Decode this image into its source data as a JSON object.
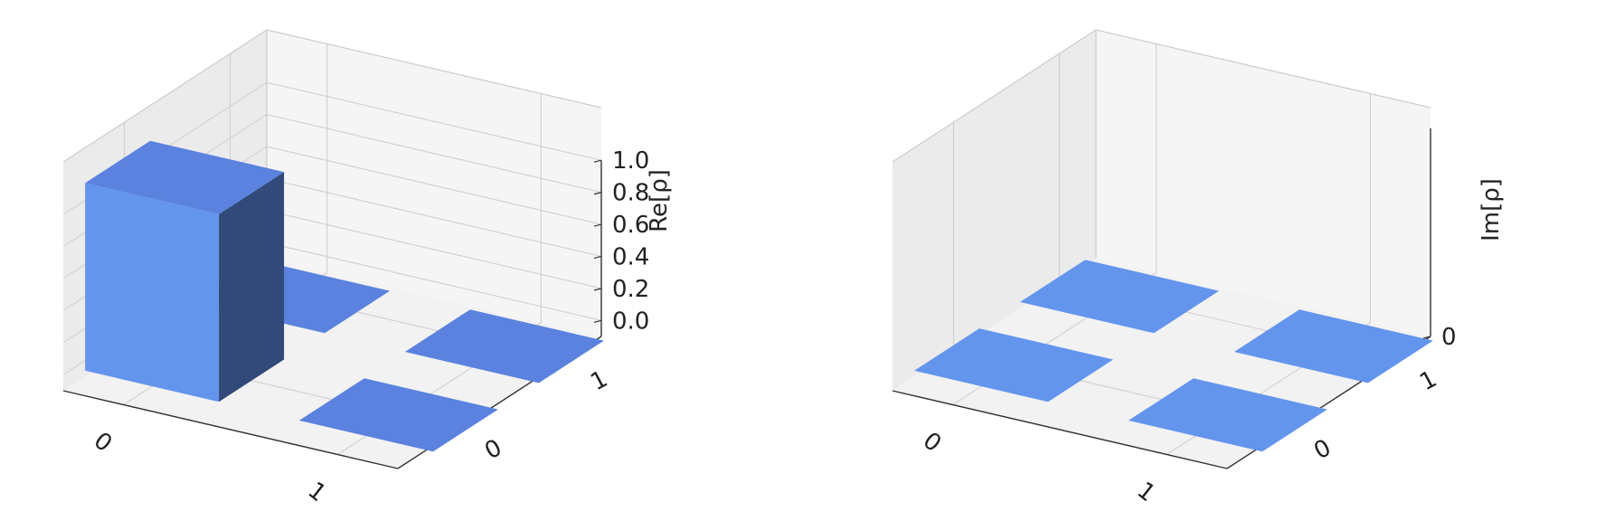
{
  "colors": {
    "bar_front": "#6495ED",
    "bar_side": "#324A79",
    "bar_top": "#5A82DE",
    "flat_bar_re": "#5A82DE",
    "flat_bar_im": "#6495ED",
    "pane_left": "#ebebeb",
    "pane_right": "#f5f5f5",
    "floor": "#f2f2f2",
    "grid": "#d2d2d2",
    "axis_line": "#333333"
  },
  "chart_data": [
    {
      "type": "bar3d",
      "zlabel": "Re[ρ]",
      "x_tick_labels": [
        "0",
        "1"
      ],
      "y_tick_labels": [
        "0",
        "1"
      ],
      "z_tick_labels": [
        "0.0",
        "0.2",
        "0.4",
        "0.6",
        "0.8",
        "1.0"
      ],
      "zlim": [
        0,
        1
      ],
      "bars": [
        {
          "row": "0",
          "col": "0",
          "value": 1.0
        },
        {
          "row": "0",
          "col": "1",
          "value": 0.0
        },
        {
          "row": "1",
          "col": "0",
          "value": 0.0
        },
        {
          "row": "1",
          "col": "1",
          "value": 0.0
        }
      ]
    },
    {
      "type": "bar3d",
      "zlabel": "Im[ρ]",
      "x_tick_labels": [
        "0",
        "1"
      ],
      "y_tick_labels": [
        "0",
        "1"
      ],
      "z_tick_labels": [
        "0"
      ],
      "bars": [
        {
          "row": "0",
          "col": "0",
          "value": 0.0
        },
        {
          "row": "0",
          "col": "1",
          "value": 0.0
        },
        {
          "row": "1",
          "col": "0",
          "value": 0.0
        },
        {
          "row": "1",
          "col": "1",
          "value": 0.0
        }
      ]
    }
  ]
}
